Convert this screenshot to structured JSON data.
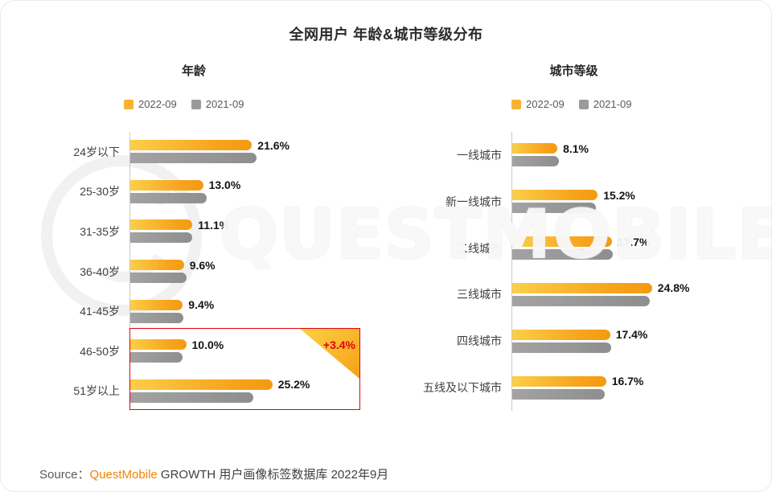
{
  "page": {
    "title": "全网用户 年龄&城市等级分布",
    "watermark_text": "QUESTMOBILE",
    "source": {
      "label": "Source：",
      "brand": "QuestMobile",
      "rest": " GROWTH 用户画像标签数据库 2022年9月"
    }
  },
  "colors": {
    "bar_orange": "#f7a41d",
    "bar_gray": "#8e8e8e",
    "legend_orange": "#f9b233",
    "legend_gray": "#9a9a9a",
    "highlight_red": "#e60012",
    "brand_orange": "#f08300"
  },
  "chart_data": [
    {
      "type": "bar",
      "orientation": "horizontal",
      "title": "年龄",
      "unit": "%",
      "legend_position": "top",
      "categories": [
        "24岁以下",
        "25-30岁",
        "31-35岁",
        "36-40岁",
        "41-45岁",
        "46-50岁",
        "51岁以上"
      ],
      "series": [
        {
          "name": "2022-09",
          "color": "#f9b233",
          "labeled": true,
          "values": [
            21.6,
            13.0,
            11.1,
            9.6,
            9.4,
            10.0,
            25.2
          ]
        },
        {
          "name": "2021-09",
          "color": "#9a9a9a",
          "labeled": false,
          "values": [
            22.4,
            13.6,
            11.0,
            10.1,
            9.5,
            9.4,
            21.8
          ]
        }
      ],
      "annotation": {
        "text": "+3.4%",
        "applies_to": "51岁以上",
        "highlight_rows": [
          "46-50岁",
          "51岁以上"
        ]
      }
    },
    {
      "type": "bar",
      "orientation": "horizontal",
      "title": "城市等级",
      "unit": "%",
      "legend_position": "top",
      "categories": [
        "一线城市",
        "新一线城市",
        "二线城市",
        "三线城市",
        "四线城市",
        "五线及以下城市"
      ],
      "series": [
        {
          "name": "2022-09",
          "color": "#f9b233",
          "labeled": true,
          "values": [
            8.1,
            15.2,
            17.7,
            24.8,
            17.4,
            16.7
          ]
        },
        {
          "name": "2021-09",
          "color": "#9a9a9a",
          "labeled": false,
          "values": [
            8.4,
            14.9,
            17.9,
            24.4,
            17.6,
            16.4
          ]
        }
      ]
    }
  ]
}
